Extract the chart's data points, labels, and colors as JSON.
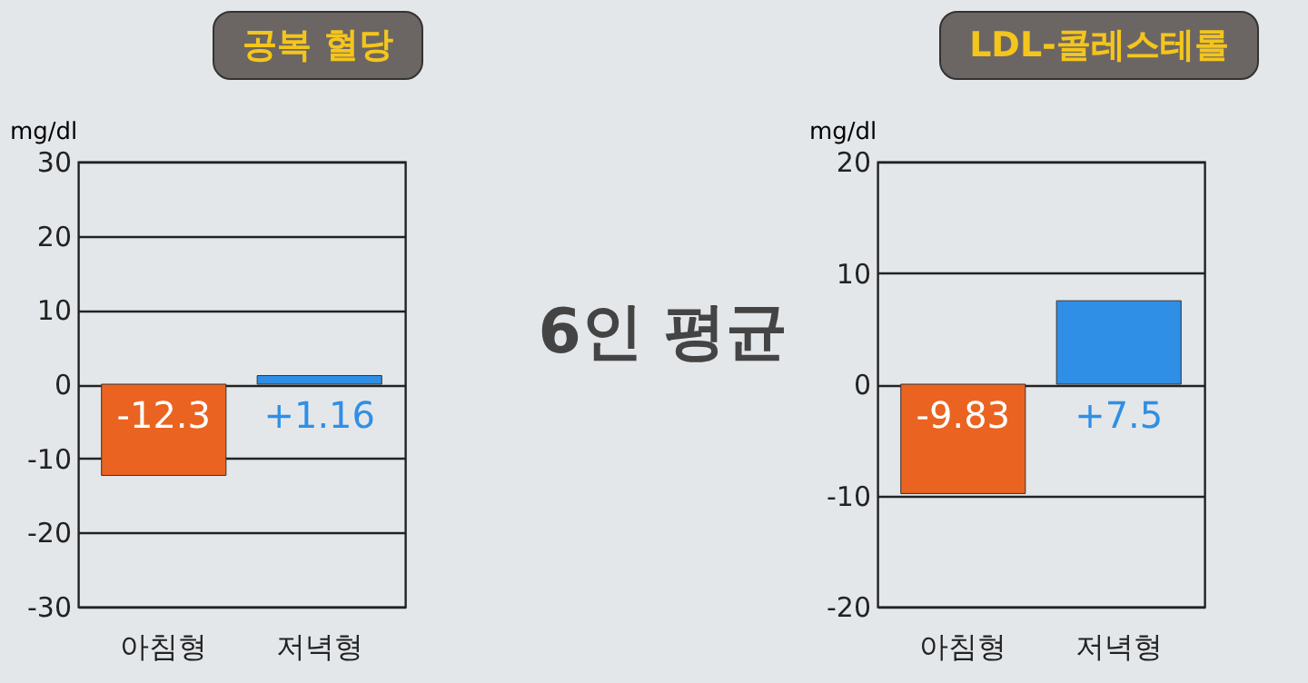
{
  "chart_data": [
    {
      "type": "bar",
      "title": "공복 혈당",
      "ylabel": "mg/dl",
      "categories": [
        "아침형",
        "저녁형"
      ],
      "values": [
        -12.3,
        1.16
      ],
      "value_labels": [
        "-12.3",
        "+1.16"
      ],
      "colors": [
        "#ea6320",
        "#2f8fe6"
      ],
      "ylim": [
        -30,
        30
      ],
      "yticks": [
        -30,
        -20,
        -10,
        0,
        10,
        20,
        30
      ],
      "grid": "y"
    },
    {
      "type": "other",
      "title": "6인 평균"
    },
    {
      "type": "bar",
      "title": "LDL-콜레스테롤",
      "ylabel": "mg/dl",
      "categories": [
        "아침형",
        "저녁형"
      ],
      "values": [
        -9.83,
        7.5
      ],
      "value_labels": [
        "-9.83",
        "+7.5"
      ],
      "colors": [
        "#ea6320",
        "#2f8fe6"
      ],
      "ylim": [
        -20,
        20
      ],
      "yticks": [
        -20,
        -10,
        0,
        10,
        20
      ],
      "grid": "y"
    }
  ]
}
